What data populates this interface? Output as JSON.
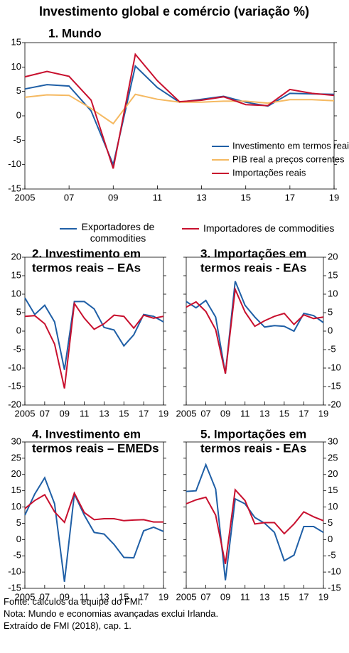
{
  "title": "Investimento global e comércio (variação %)",
  "legend": [
    {
      "name": "Exportadores de commodities",
      "color": "#1f5fa6"
    },
    {
      "name": "Importadores de commodities",
      "color": "#c8102e"
    }
  ],
  "chart_data": [
    {
      "type": "line",
      "title": [
        "1.   Mundo"
      ],
      "yaxis_side": "left",
      "legend_position": "lower right",
      "x": [
        2005,
        2006,
        2007,
        2008,
        2009,
        2010,
        2011,
        2012,
        2013,
        2014,
        2015,
        2016,
        2017,
        2018,
        2019
      ],
      "xticks": [
        2005,
        {
          "value": 2007,
          "label": "07"
        },
        {
          "value": 2009,
          "label": "09"
        },
        {
          "value": 2011,
          "label": "11"
        },
        {
          "value": 2013,
          "label": "13"
        },
        {
          "value": 2015,
          "label": "15"
        },
        {
          "value": 2017,
          "label": "17"
        },
        {
          "value": 2019,
          "label": "19"
        }
      ],
      "xlim": [
        2005,
        2019
      ],
      "ylim": [
        -15,
        15
      ],
      "yticks": [
        -15,
        -10,
        -5,
        0,
        5,
        10,
        15
      ],
      "series": [
        {
          "name": "Investimento em termos reais",
          "color": "#1f5fa6",
          "values": [
            5.5,
            6.4,
            6.1,
            1.0,
            -10.0,
            10.2,
            5.8,
            2.8,
            3.4,
            4.0,
            2.8,
            2.0,
            4.6,
            4.5,
            4.4
          ]
        },
        {
          "name": "PIB real a preços correntes",
          "color": "#f5b961",
          "values": [
            3.8,
            4.3,
            4.2,
            1.5,
            -1.6,
            4.4,
            3.4,
            2.8,
            2.8,
            3.0,
            3.0,
            2.6,
            3.3,
            3.3,
            3.1
          ]
        },
        {
          "name": "Importações reais",
          "color": "#c8102e",
          "values": [
            8.0,
            9.1,
            8.1,
            3.2,
            -10.8,
            12.6,
            7.2,
            2.9,
            3.2,
            3.9,
            2.3,
            2.1,
            5.4,
            4.6,
            4.2
          ]
        }
      ]
    },
    {
      "type": "line",
      "title": [
        "2. Investimento em",
        "termos reais – EAs"
      ],
      "yaxis_side": "left",
      "x": [
        2005,
        2006,
        2007,
        2008,
        2009,
        2010,
        2011,
        2012,
        2013,
        2014,
        2015,
        2016,
        2017,
        2018,
        2019
      ],
      "xticks": [
        2005,
        {
          "value": 2007,
          "label": "07"
        },
        {
          "value": 2009,
          "label": "09"
        },
        {
          "value": 2011,
          "label": "11"
        },
        {
          "value": 2013,
          "label": "13"
        },
        {
          "value": 2015,
          "label": "15"
        },
        {
          "value": 2017,
          "label": "17"
        },
        {
          "value": 2019,
          "label": "19"
        }
      ],
      "xlim": [
        2005,
        2019
      ],
      "ylim": [
        -20,
        20
      ],
      "yticks": [
        -20,
        -15,
        -10,
        -5,
        0,
        5,
        10,
        15,
        20
      ],
      "series": [
        {
          "values": [
            9,
            4.5,
            7,
            2.5,
            -10.5,
            8,
            8,
            6,
            1,
            0.3,
            -4,
            -1,
            4.5,
            4,
            2.5
          ]
        },
        {
          "values": [
            4,
            4.2,
            2,
            -3.5,
            -15.5,
            7.5,
            3.5,
            0.5,
            2,
            4.3,
            4,
            0.8,
            4.3,
            3.5,
            4
          ]
        }
      ]
    },
    {
      "type": "line",
      "title": [
        "3. Importações em",
        "termos reais - EAs"
      ],
      "yaxis_side": "right",
      "x": [
        2005,
        2006,
        2007,
        2008,
        2009,
        2010,
        2011,
        2012,
        2013,
        2014,
        2015,
        2016,
        2017,
        2018,
        2019
      ],
      "xticks": [
        2005,
        {
          "value": 2007,
          "label": "07"
        },
        {
          "value": 2009,
          "label": "09"
        },
        {
          "value": 2011,
          "label": "11"
        },
        {
          "value": 2013,
          "label": "13"
        },
        {
          "value": 2015,
          "label": "15"
        },
        {
          "value": 2017,
          "label": "17"
        },
        {
          "value": 2019,
          "label": "19"
        }
      ],
      "xlim": [
        2005,
        2019
      ],
      "ylim": [
        -20,
        20
      ],
      "yticks": [
        -20,
        -15,
        -10,
        -5,
        0,
        5,
        10,
        15,
        20
      ],
      "series": [
        {
          "values": [
            8,
            6.3,
            8.3,
            3.8,
            -11.5,
            13.5,
            7,
            3.8,
            1.1,
            1.5,
            1.3,
            0,
            4.8,
            4.2,
            2.3
          ]
        },
        {
          "values": [
            6.5,
            7.9,
            5.3,
            0.4,
            -11.5,
            11.3,
            5.2,
            1.3,
            2.8,
            4,
            4.8,
            1.8,
            4.4,
            3.4,
            3.8
          ]
        }
      ]
    },
    {
      "type": "line",
      "title": [
        "4. Investimento em",
        "termos reais – EMEDs"
      ],
      "yaxis_side": "left",
      "x": [
        2005,
        2006,
        2007,
        2008,
        2009,
        2010,
        2011,
        2012,
        2013,
        2014,
        2015,
        2016,
        2017,
        2018,
        2019
      ],
      "xticks": [
        2005,
        {
          "value": 2007,
          "label": "07"
        },
        {
          "value": 2009,
          "label": "09"
        },
        {
          "value": 2011,
          "label": "11"
        },
        {
          "value": 2013,
          "label": "13"
        },
        {
          "value": 2015,
          "label": "15"
        },
        {
          "value": 2017,
          "label": "17"
        },
        {
          "value": 2019,
          "label": "19"
        }
      ],
      "xlim": [
        2005,
        2019
      ],
      "ylim": [
        -15,
        30
      ],
      "yticks": [
        -15,
        -10,
        -5,
        0,
        5,
        10,
        15,
        20,
        25,
        30
      ],
      "series": [
        {
          "values": [
            7.5,
            14,
            19,
            11,
            -13,
            14,
            7.5,
            2.2,
            1.7,
            -1.5,
            -5.5,
            -5.6,
            2.7,
            3.8,
            2.5
          ]
        },
        {
          "values": [
            9.5,
            12,
            13.8,
            8.5,
            5.3,
            14.3,
            8.3,
            6.1,
            6.4,
            6.4,
            5.8,
            6,
            6.1,
            5.4,
            5.4
          ]
        }
      ]
    },
    {
      "type": "line",
      "title": [
        "5. Importações em",
        "termos reais - EAs"
      ],
      "yaxis_side": "right",
      "x": [
        2005,
        2006,
        2007,
        2008,
        2009,
        2010,
        2011,
        2012,
        2013,
        2014,
        2015,
        2016,
        2017,
        2018,
        2019
      ],
      "xticks": [
        2005,
        {
          "value": 2007,
          "label": "07"
        },
        {
          "value": 2009,
          "label": "09"
        },
        {
          "value": 2011,
          "label": "11"
        },
        {
          "value": 2013,
          "label": "13"
        },
        {
          "value": 2015,
          "label": "15"
        },
        {
          "value": 2017,
          "label": "17"
        },
        {
          "value": 2019,
          "label": "19"
        }
      ],
      "xlim": [
        2005,
        2019
      ],
      "ylim": [
        -15,
        30
      ],
      "yticks": [
        -15,
        -10,
        -5,
        0,
        5,
        10,
        15,
        20,
        25,
        30
      ],
      "series": [
        {
          "values": [
            14.8,
            15,
            23,
            15.5,
            -12.5,
            12.5,
            11,
            6.8,
            5,
            2.2,
            -6.5,
            -4.8,
            4,
            4,
            2.2
          ]
        },
        {
          "values": [
            11,
            12.2,
            13,
            7.5,
            -7.5,
            15.3,
            12,
            4.8,
            5.2,
            5.2,
            1.8,
            4.8,
            8.5,
            7,
            5.8
          ]
        }
      ]
    }
  ],
  "notes": [
    "Fonte: cálculos da equipe do FMI.",
    "Nota: Mundo e economias avançadas exclui Irlanda.",
    "Extraído de FMI (2018), cap. 1."
  ]
}
